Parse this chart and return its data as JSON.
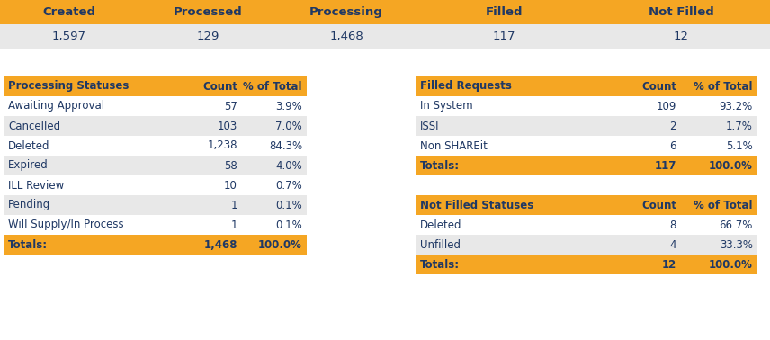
{
  "orange": "#F5A623",
  "light_gray": "#E8E8E8",
  "white": "#FFFFFF",
  "text_color": "#1F3864",
  "summary_headers": [
    "Created",
    "Processed",
    "Processing",
    "Filled",
    "Not Filled"
  ],
  "summary_values": [
    "1,597",
    "129",
    "1,468",
    "117",
    "12"
  ],
  "proc_headers": [
    "Processing Statuses",
    "Count",
    "% of Total"
  ],
  "proc_rows": [
    [
      "Awaiting Approval",
      "57",
      "3.9%"
    ],
    [
      "Cancelled",
      "103",
      "7.0%"
    ],
    [
      "Deleted",
      "1,238",
      "84.3%"
    ],
    [
      "Expired",
      "58",
      "4.0%"
    ],
    [
      "ILL Review",
      "10",
      "0.7%"
    ],
    [
      "Pending",
      "1",
      "0.1%"
    ],
    [
      "Will Supply/In Process",
      "1",
      "0.1%"
    ]
  ],
  "proc_total": [
    "Totals:",
    "1,468",
    "100.0%"
  ],
  "filled_headers": [
    "Filled Requests",
    "Count",
    "% of Total"
  ],
  "filled_rows": [
    [
      "In System",
      "109",
      "93.2%"
    ],
    [
      "ISSI",
      "2",
      "1.7%"
    ],
    [
      "Non SHAREit",
      "6",
      "5.1%"
    ]
  ],
  "filled_total": [
    "Totals:",
    "117",
    "100.0%"
  ],
  "notfilled_headers": [
    "Not Filled Statuses",
    "Count",
    "% of Total"
  ],
  "notfilled_rows": [
    [
      "Deleted",
      "8",
      "66.7%"
    ],
    [
      "Unfilled",
      "4",
      "33.3%"
    ]
  ],
  "notfilled_total": [
    "Totals:",
    "12",
    "100.0%"
  ],
  "fig_w": 8.56,
  "fig_h": 3.78,
  "dpi": 100
}
